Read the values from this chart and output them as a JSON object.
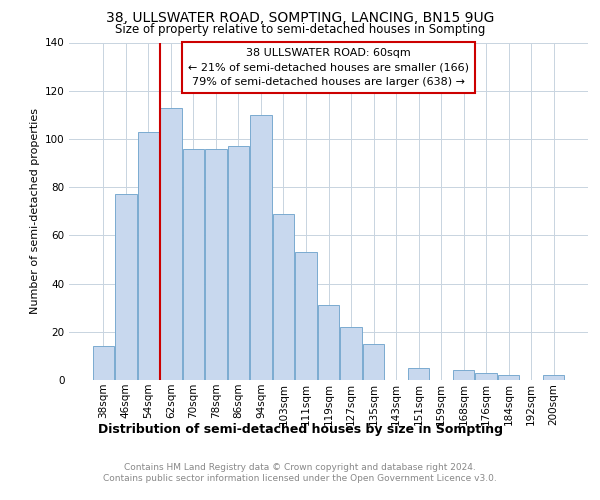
{
  "title1": "38, ULLSWATER ROAD, SOMPTING, LANCING, BN15 9UG",
  "title2": "Size of property relative to semi-detached houses in Sompting",
  "xlabel": "Distribution of semi-detached houses by size in Sompting",
  "ylabel": "Number of semi-detached properties",
  "bar_labels": [
    "38sqm",
    "46sqm",
    "54sqm",
    "62sqm",
    "70sqm",
    "78sqm",
    "86sqm",
    "94sqm",
    "103sqm",
    "111sqm",
    "119sqm",
    "127sqm",
    "135sqm",
    "143sqm",
    "151sqm",
    "159sqm",
    "168sqm",
    "176sqm",
    "184sqm",
    "192sqm",
    "200sqm"
  ],
  "bar_heights": [
    14,
    77,
    103,
    113,
    96,
    96,
    97,
    110,
    69,
    53,
    31,
    22,
    15,
    0,
    5,
    0,
    4,
    3,
    2,
    0,
    2
  ],
  "bar_color": "#c8d8ee",
  "bar_edge_color": "#7aaad0",
  "vline_color": "#cc0000",
  "vline_x": 3.0,
  "annotation_line1": "38 ULLSWATER ROAD: 60sqm",
  "annotation_line2": "← 21% of semi-detached houses are smaller (166)",
  "annotation_line3": "79% of semi-detached houses are larger (638) →",
  "annotation_box_edgecolor": "#cc0000",
  "footer_text": "Contains HM Land Registry data © Crown copyright and database right 2024.\nContains public sector information licensed under the Open Government Licence v3.0.",
  "ylim": [
    0,
    140
  ],
  "yticks": [
    0,
    20,
    40,
    60,
    80,
    100,
    120,
    140
  ],
  "bg_color": "#ffffff",
  "grid_color": "#c8d4e0",
  "title1_fontsize": 10,
  "title2_fontsize": 8.5,
  "xlabel_fontsize": 9,
  "ylabel_fontsize": 8,
  "tick_fontsize": 7.5,
  "footer_fontsize": 6.5
}
